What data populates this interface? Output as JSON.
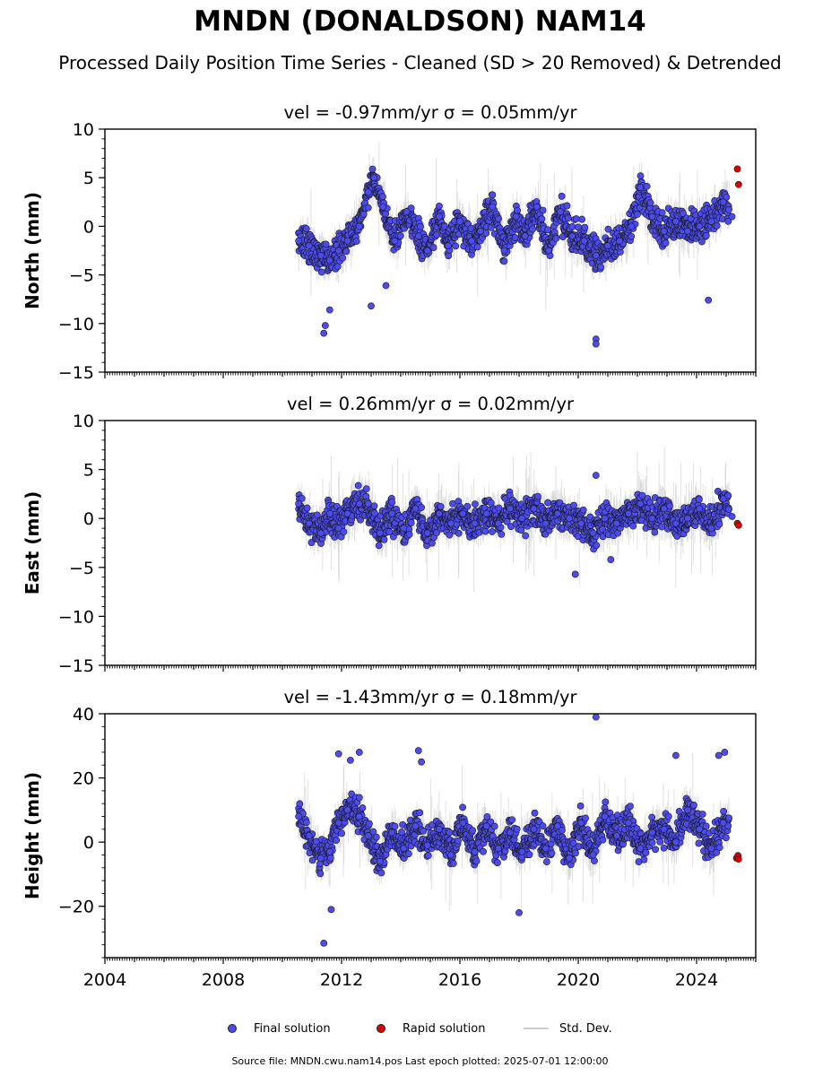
{
  "header": {
    "title": "MNDN (DONALDSON) NAM14",
    "subtitle": "Processed Daily Position Time Series - Cleaned (SD > 20 Removed) & Detrended"
  },
  "legend": {
    "final": "Final solution",
    "rapid": "Rapid solution",
    "std": "Std. Dev."
  },
  "footer": "Source file: MNDN.cwu.nam14.pos  Last epoch plotted: 2025-07-01 12:00:00",
  "colors": {
    "final": "#4b4bf0",
    "rapid": "#e00000",
    "std": "#c8c8c8",
    "marker_edge": "#1a1a1a"
  },
  "chart_data": [
    {
      "type": "scatter",
      "panel": "north",
      "vel_title": "vel = -0.97mm/yr   σ = 0.05mm/yr",
      "ylabel": "North (mm)",
      "xlim": [
        2004,
        2026
      ],
      "ylim": [
        -15,
        10
      ],
      "yticks": [
        10,
        5,
        0,
        -5,
        -10,
        -15
      ],
      "ytick_labels": [
        "10",
        "5",
        "0",
        "−5",
        "−10",
        "−15"
      ],
      "data_range": [
        2010.55,
        2025.1
      ],
      "series": [
        {
          "name": "Final solution",
          "x": [
            2010.55,
            2010.9,
            2011.3,
            2011.6,
            2011.9,
            2012.2,
            2012.6,
            2012.9,
            2013.1,
            2013.4,
            2013.8,
            2014.2,
            2014.6,
            2014.9,
            2015.3,
            2015.6,
            2016.0,
            2016.4,
            2016.7,
            2017.1,
            2017.5,
            2017.9,
            2018.2,
            2018.6,
            2019.0,
            2019.4,
            2019.8,
            2020.2,
            2020.6,
            2021.0,
            2021.4,
            2021.8,
            2022.1,
            2022.5,
            2022.9,
            2023.3,
            2023.7,
            2024.1,
            2024.5,
            2024.9
          ],
          "y": [
            -1.5,
            -2.0,
            -3.0,
            -3.5,
            -2.5,
            -1.5,
            0.0,
            3.5,
            5.0,
            2.0,
            -1.5,
            1.5,
            -1.0,
            -2.5,
            1.0,
            -2.0,
            0.5,
            -1.5,
            -0.5,
            2.0,
            -2.5,
            1.0,
            -1.0,
            2.0,
            -2.5,
            1.5,
            -1.0,
            -1.5,
            -3.0,
            -2.0,
            -1.5,
            0.0,
            4.0,
            1.0,
            -0.5,
            0.5,
            -0.5,
            0.0,
            0.5,
            2.5
          ]
        },
        {
          "name": "Final solution outliers",
          "x": [
            2011.4,
            2011.45,
            2011.6,
            2013.0,
            2013.5,
            2020.6,
            2020.6,
            2024.4,
            2025.2
          ],
          "y": [
            -11.0,
            -10.2,
            -8.6,
            -8.2,
            -6.1,
            -11.6,
            -12.1,
            -7.6,
            1.0
          ]
        },
        {
          "name": "Rapid solution",
          "x": [
            2025.38,
            2025.42
          ],
          "y": [
            5.9,
            4.3
          ]
        }
      ]
    },
    {
      "type": "scatter",
      "panel": "east",
      "vel_title": "vel = 0.26mm/yr   σ = 0.02mm/yr",
      "ylabel": "East (mm)",
      "xlim": [
        2004,
        2026
      ],
      "ylim": [
        -15,
        10
      ],
      "yticks": [
        10,
        5,
        0,
        -5,
        -10,
        -15
      ],
      "ytick_labels": [
        "10",
        "5",
        "0",
        "−5",
        "−10",
        "−15"
      ],
      "data_range": [
        2010.55,
        2025.1
      ],
      "series": [
        {
          "name": "Final solution",
          "x": [
            2010.55,
            2010.9,
            2011.3,
            2011.6,
            2011.9,
            2012.2,
            2012.6,
            2012.9,
            2013.3,
            2013.7,
            2014.1,
            2014.5,
            2014.9,
            2015.3,
            2015.7,
            2016.1,
            2016.5,
            2016.9,
            2017.3,
            2017.7,
            2018.1,
            2018.5,
            2018.9,
            2019.3,
            2019.7,
            2020.1,
            2020.5,
            2020.9,
            2021.3,
            2021.7,
            2022.1,
            2022.5,
            2022.9,
            2023.3,
            2023.7,
            2024.1,
            2024.5,
            2024.9
          ],
          "y": [
            1.5,
            -0.5,
            -1.5,
            0.5,
            -1.0,
            0.5,
            1.5,
            1.5,
            -1.5,
            0.5,
            -1.0,
            1.0,
            -1.5,
            0.5,
            -0.5,
            0.5,
            -0.5,
            0.5,
            -0.5,
            1.0,
            0.0,
            1.0,
            -0.5,
            0.5,
            0.0,
            -0.5,
            -1.5,
            0.0,
            -0.5,
            0.5,
            1.5,
            0.0,
            1.0,
            -0.5,
            0.0,
            1.0,
            -1.0,
            2.0
          ]
        },
        {
          "name": "Final solution outliers",
          "x": [
            2019.9,
            2020.6,
            2021.1,
            2025.2
          ],
          "y": [
            -5.7,
            4.4,
            -4.2,
            0.2
          ]
        },
        {
          "name": "Rapid solution",
          "x": [
            2025.38,
            2025.42
          ],
          "y": [
            -0.5,
            -0.7
          ]
        }
      ]
    },
    {
      "type": "scatter",
      "panel": "height",
      "vel_title": "vel = -1.43mm/yr   σ = 0.18mm/yr",
      "ylabel": "Height (mm)",
      "xlim": [
        2004,
        2026
      ],
      "ylim": [
        -36,
        40
      ],
      "yticks": [
        40,
        20,
        0,
        -20
      ],
      "ytick_labels": [
        "40",
        "20",
        "0",
        "−20"
      ],
      "xticks": [
        2004,
        2008,
        2012,
        2016,
        2020,
        2024
      ],
      "xtick_labels": [
        "2004",
        "2008",
        "2012",
        "2016",
        "2020",
        "2024"
      ],
      "data_range": [
        2010.55,
        2025.1
      ],
      "series": [
        {
          "name": "Final solution",
          "x": [
            2010.55,
            2010.9,
            2011.3,
            2011.6,
            2011.9,
            2012.2,
            2012.6,
            2012.9,
            2013.3,
            2013.7,
            2014.1,
            2014.5,
            2014.9,
            2015.3,
            2015.7,
            2016.1,
            2016.5,
            2016.9,
            2017.3,
            2017.7,
            2018.1,
            2018.5,
            2018.9,
            2019.3,
            2019.7,
            2020.1,
            2020.5,
            2020.9,
            2021.3,
            2021.7,
            2022.1,
            2022.5,
            2022.9,
            2023.3,
            2023.7,
            2024.1,
            2024.5,
            2024.9
          ],
          "y": [
            8,
            2,
            -5,
            -3,
            6,
            10,
            8,
            2,
            -6,
            3,
            -2,
            5,
            -1,
            4,
            -4,
            6,
            -3,
            5,
            -2,
            3,
            -3,
            4,
            -2,
            5,
            -5,
            6,
            -4,
            8,
            2,
            6,
            -2,
            3,
            4,
            0,
            10,
            4,
            -2,
            6
          ]
        },
        {
          "name": "Final solution outliers",
          "x": [
            2011.4,
            2011.65,
            2011.9,
            2012.3,
            2012.6,
            2014.6,
            2014.7,
            2018.0,
            2020.6,
            2023.3,
            2024.75,
            2024.95
          ],
          "y": [
            -31.5,
            -21,
            27.5,
            25.5,
            28,
            28.5,
            25,
            -22,
            39,
            27,
            27,
            28
          ]
        },
        {
          "name": "Rapid solution",
          "x": [
            2025.35,
            2025.4,
            2025.42
          ],
          "y": [
            -5.0,
            -4.2,
            -5.3
          ]
        }
      ]
    }
  ]
}
